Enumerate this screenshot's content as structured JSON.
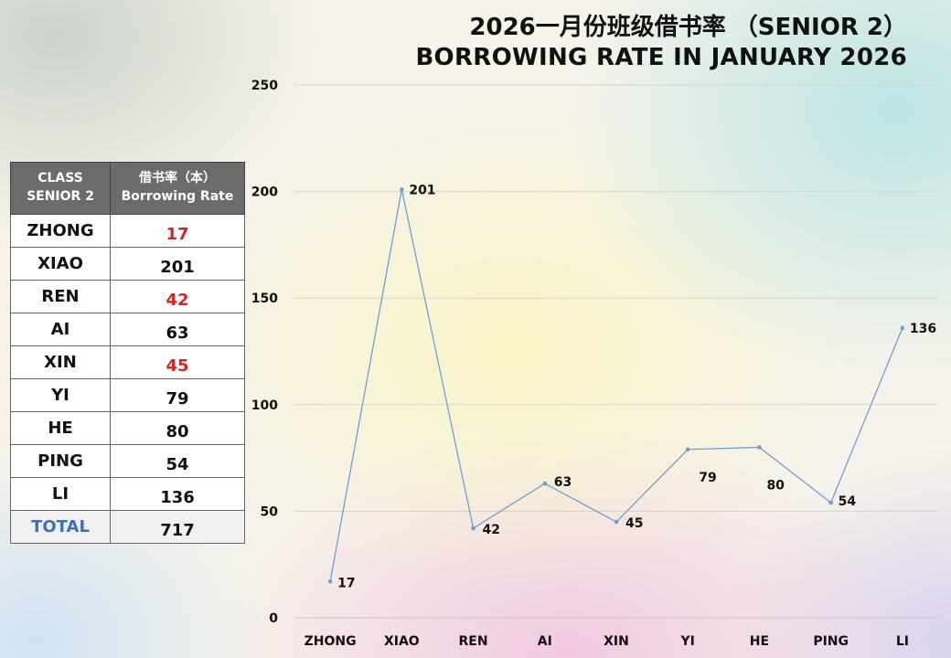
{
  "header": {
    "title_line1": "2026一月份班级借书率 （SENIOR 2）",
    "title_line2": "BORROWING RATE IN JANUARY 2026"
  },
  "table": {
    "header_class": [
      "CLASS",
      "SENIOR 2"
    ],
    "header_rate": [
      "借书率（本）",
      "Borrowing Rate"
    ],
    "rows": [
      {
        "name": "ZHONG",
        "value": "17",
        "highlight": true
      },
      {
        "name": "XIAO",
        "value": "201",
        "highlight": false
      },
      {
        "name": "REN",
        "value": "42",
        "highlight": true
      },
      {
        "name": "AI",
        "value": "63",
        "highlight": false
      },
      {
        "name": "XIN",
        "value": "45",
        "highlight": true
      },
      {
        "name": "YI",
        "value": "79",
        "highlight": false
      },
      {
        "name": "HE",
        "value": "80",
        "highlight": false
      },
      {
        "name": "PING",
        "value": "54",
        "highlight": false
      },
      {
        "name": "LI",
        "value": "136",
        "highlight": false
      }
    ],
    "total_label": "TOTAL",
    "total_value": "717"
  },
  "colors": {
    "line": "#6f9fd8",
    "highlight_text": "#e0201e",
    "total_label": "#3e6fbf",
    "table_header_bg": "#6b6b6b"
  },
  "chart_data": {
    "type": "line",
    "categories": [
      "ZHONG",
      "XIAO",
      "REN",
      "AI",
      "XIN",
      "YI",
      "HE",
      "PING",
      "LI"
    ],
    "series": [
      {
        "values": [
          17,
          201,
          42,
          63,
          45,
          79,
          80,
          54,
          136
        ]
      }
    ],
    "ylim": [
      0,
      250
    ],
    "yticks": [
      0,
      50,
      100,
      150,
      200,
      250
    ],
    "grid": true,
    "legend": "none",
    "data_labels": true
  }
}
